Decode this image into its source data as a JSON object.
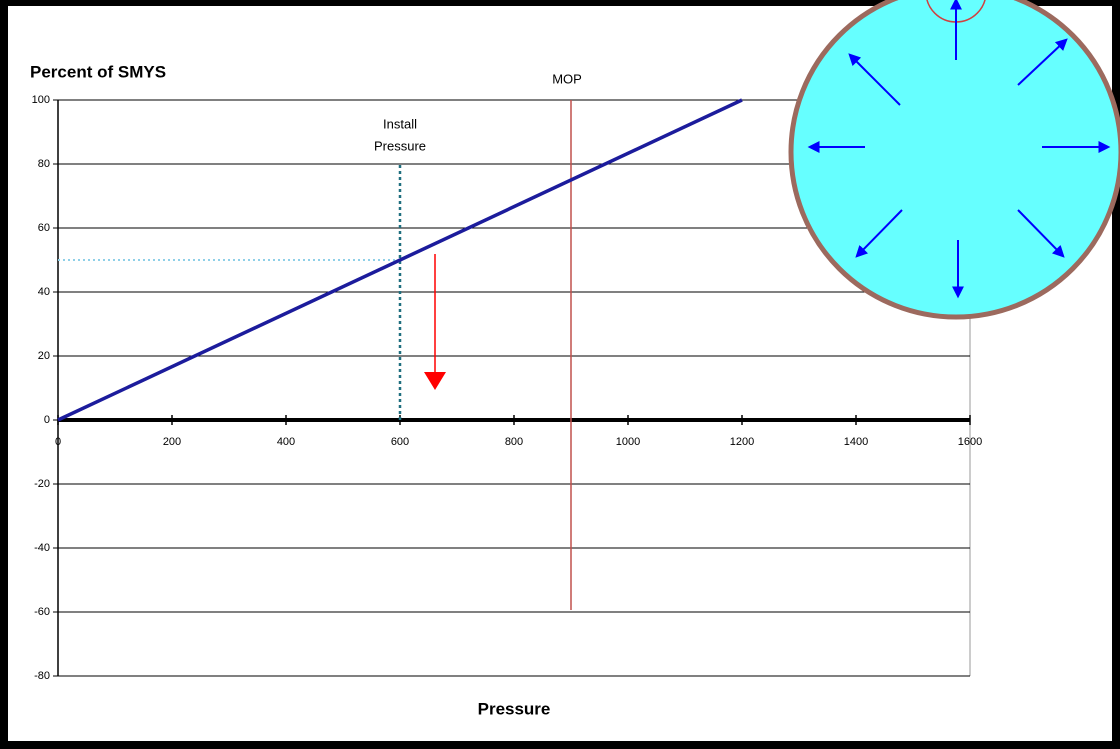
{
  "chart_data": {
    "type": "line",
    "title": "Percent of SMYS",
    "x_label": "Pressure",
    "x": [
      0,
      1200
    ],
    "series": [
      {
        "color": "#1c1c9c",
        "values": [
          0,
          100
        ]
      }
    ],
    "xlim": [
      0,
      1600
    ],
    "xticks": [
      0,
      200,
      400,
      600,
      800,
      1000,
      1200,
      1400,
      1600
    ],
    "ylim": [
      -80,
      100
    ],
    "yticks": [
      -80,
      -60,
      -40,
      -20,
      0,
      20,
      40,
      60,
      80,
      100
    ],
    "grid": true,
    "annotations": [
      {
        "text": "MOP",
        "x": 900,
        "color": "#c0504d"
      },
      {
        "lines": [
          "Install",
          "Pressure"
        ],
        "x": 600,
        "y": 50,
        "color": "#1f6f7f"
      }
    ]
  }
}
